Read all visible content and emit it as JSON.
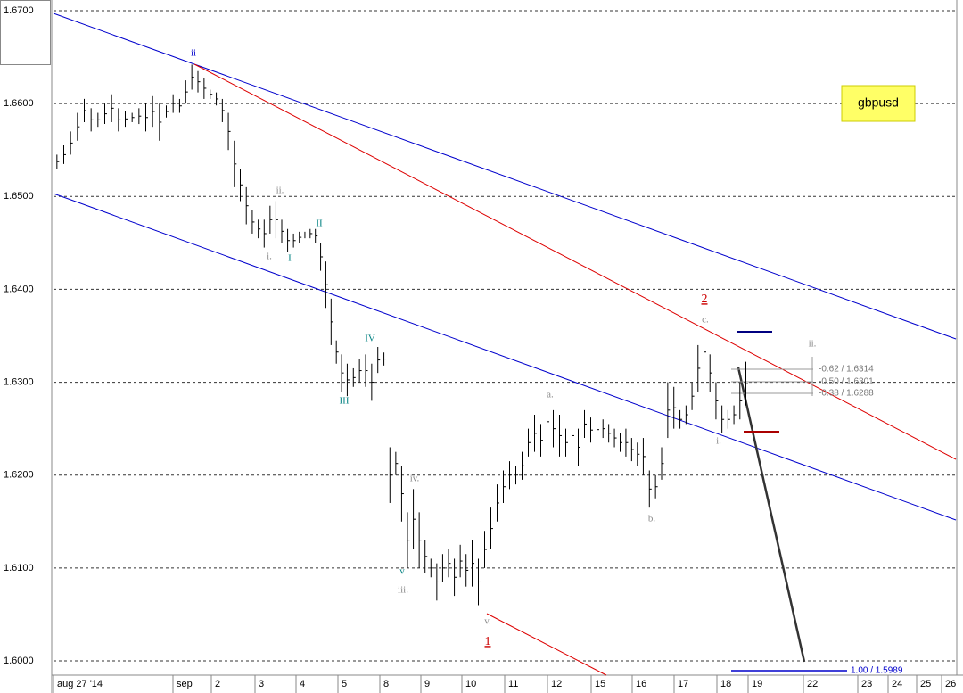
{
  "chart_data": {
    "type": "price_bars",
    "symbol": "gbpusd",
    "ylim": [
      1.6,
      1.67
    ],
    "yticks": [
      {
        "value": 1.6,
        "label": "1.6000"
      },
      {
        "value": 1.61,
        "label": "1.6100"
      },
      {
        "value": 1.62,
        "label": "1.6200"
      },
      {
        "value": 1.63,
        "label": "1.6300"
      },
      {
        "value": 1.64,
        "label": "1.6400"
      },
      {
        "value": 1.65,
        "label": "1.6500"
      },
      {
        "value": 1.66,
        "label": "1.6600"
      },
      {
        "value": 1.67,
        "label": "1.6700"
      }
    ],
    "grid": true,
    "bar_color": "#000000",
    "x_labels": [
      "aug 27 '14",
      "sep",
      "2",
      "3",
      "4",
      "5",
      "8",
      "9",
      "10",
      "11",
      "12",
      "15",
      "16",
      "17",
      "18",
      "19",
      "22",
      "23",
      "24",
      "25",
      "26"
    ],
    "sessions": [
      [
        [
          1.6545,
          1.653
        ],
        [
          1.6555,
          1.6535
        ],
        [
          1.657,
          1.6545
        ],
        [
          1.659,
          1.656
        ],
        [
          1.6605,
          1.658
        ],
        [
          1.6595,
          1.657
        ],
        [
          1.659,
          1.6575
        ],
        [
          1.66,
          1.6578
        ],
        [
          1.661,
          1.658
        ],
        [
          1.6595,
          1.657
        ],
        [
          1.6592,
          1.6575
        ],
        [
          1.659,
          1.658
        ],
        [
          1.6595,
          1.6578
        ],
        [
          1.66,
          1.657
        ],
        [
          1.6608,
          1.6575
        ],
        [
          1.66,
          1.656
        ],
        [
          1.6598,
          1.6585
        ],
        [
          1.661,
          1.659
        ]
      ],
      [
        [
          1.6605,
          1.659
        ],
        [
          1.6625,
          1.66
        ],
        [
          1.6642,
          1.6615
        ],
        [
          1.6635,
          1.6612
        ],
        [
          1.6628,
          1.6605
        ],
        [
          1.6615,
          1.6605
        ],
        [
          1.6612,
          1.6598
        ]
      ],
      [
        [
          1.6605,
          1.658
        ],
        [
          1.659,
          1.655
        ],
        [
          1.656,
          1.651
        ],
        [
          1.653,
          1.6495
        ],
        [
          1.651,
          1.647
        ],
        [
          1.6485,
          1.646
        ],
        [
          1.6475,
          1.6455
        ]
      ],
      [
        [
          1.6475,
          1.6445
        ],
        [
          1.649,
          1.646
        ],
        [
          1.6495,
          1.6455
        ],
        [
          1.6475,
          1.645
        ],
        [
          1.6465,
          1.644
        ],
        [
          1.646,
          1.6445
        ],
        [
          1.6462,
          1.645
        ]
      ],
      [
        [
          1.6462,
          1.6455
        ],
        [
          1.6465,
          1.6455
        ],
        [
          1.6465,
          1.645
        ],
        [
          1.645,
          1.642
        ],
        [
          1.643,
          1.638
        ],
        [
          1.639,
          1.634
        ],
        [
          1.6345,
          1.632
        ],
        [
          1.633,
          1.629
        ]
      ],
      [
        [
          1.632,
          1.6285
        ],
        [
          1.6315,
          1.6295
        ],
        [
          1.6325,
          1.63
        ],
        [
          1.633,
          1.6295
        ],
        [
          1.632,
          1.628
        ],
        [
          1.6338,
          1.631
        ],
        [
          1.6332,
          1.6318
        ]
      ],
      [
        [
          1.623,
          1.617
        ],
        [
          1.6225,
          1.62
        ],
        [
          1.621,
          1.615
        ],
        [
          1.616,
          1.61
        ],
        [
          1.6185,
          1.612
        ],
        [
          1.616,
          1.61
        ],
        [
          1.613,
          1.6095
        ]
      ],
      [
        [
          1.611,
          1.609
        ],
        [
          1.6105,
          1.6065
        ],
        [
          1.6115,
          1.6085
        ],
        [
          1.612,
          1.609
        ],
        [
          1.611,
          1.607
        ],
        [
          1.6125,
          1.609
        ],
        [
          1.6115,
          1.608
        ]
      ],
      [
        [
          1.613,
          1.608
        ],
        [
          1.611,
          1.606
        ],
        [
          1.614,
          1.61
        ],
        [
          1.6165,
          1.612
        ],
        [
          1.619,
          1.615
        ],
        [
          1.6205,
          1.617
        ],
        [
          1.6215,
          1.6185
        ]
      ],
      [
        [
          1.621,
          1.619
        ],
        [
          1.6225,
          1.6195
        ],
        [
          1.625,
          1.622
        ],
        [
          1.6265,
          1.6225
        ],
        [
          1.6255,
          1.622
        ],
        [
          1.6275,
          1.624
        ],
        [
          1.627,
          1.623
        ]
      ],
      [
        [
          1.6265,
          1.622
        ],
        [
          1.625,
          1.622
        ],
        [
          1.626,
          1.6225
        ],
        [
          1.625,
          1.621
        ],
        [
          1.627,
          1.624
        ],
        [
          1.6262,
          1.6235
        ],
        [
          1.6258,
          1.624
        ]
      ],
      [
        [
          1.626,
          1.624
        ],
        [
          1.6255,
          1.6235
        ],
        [
          1.625,
          1.623
        ],
        [
          1.6245,
          1.6225
        ],
        [
          1.625,
          1.622
        ],
        [
          1.624,
          1.6215
        ],
        [
          1.6235,
          1.621
        ]
      ],
      [
        [
          1.624,
          1.62
        ],
        [
          1.6205,
          1.6165
        ],
        [
          1.62,
          1.6175
        ],
        [
          1.623,
          1.6195
        ],
        [
          1.63,
          1.624
        ],
        [
          1.6295,
          1.625
        ],
        [
          1.627,
          1.625
        ]
      ],
      [
        [
          1.6275,
          1.6255
        ],
        [
          1.63,
          1.627
        ],
        [
          1.634,
          1.629
        ],
        [
          1.6355,
          1.631
        ],
        [
          1.633,
          1.629
        ],
        [
          1.63,
          1.626
        ],
        [
          1.6275,
          1.6245
        ]
      ],
      [
        [
          1.627,
          1.625
        ],
        [
          1.6275,
          1.6255
        ],
        [
          1.63,
          1.626
        ],
        [
          1.6322,
          1.6275
        ]
      ]
    ],
    "annotations": [
      {
        "text": "ii",
        "color": "#0000cc"
      },
      {
        "text": "ii.",
        "color": "#888888"
      },
      {
        "text": "i.",
        "color": "#888888"
      },
      {
        "text": "I",
        "color": "#008080"
      },
      {
        "text": "II",
        "color": "#008080"
      },
      {
        "text": "III",
        "color": "#008080"
      },
      {
        "text": "IV",
        "color": "#008080"
      },
      {
        "text": "iv.",
        "color": "#888888"
      },
      {
        "text": "v",
        "color": "#008080"
      },
      {
        "text": "iii.",
        "color": "#888888"
      },
      {
        "text": "v.",
        "color": "#888888"
      },
      {
        "text": "1",
        "color": "#cc0000"
      },
      {
        "text": "a.",
        "color": "#888888"
      },
      {
        "text": "b.",
        "color": "#888888"
      },
      {
        "text": "c.",
        "color": "#888888"
      },
      {
        "text": "2",
        "color": "#cc0000"
      },
      {
        "text": "i.",
        "color": "#888888"
      },
      {
        "text": "ii.",
        "color": "#888888"
      }
    ],
    "fib_labels": [
      "-0.62 / 1.6314",
      "-0.50 / 1.6301",
      "-0.38 / 1.6288",
      "1.00 / 1.5989"
    ]
  }
}
